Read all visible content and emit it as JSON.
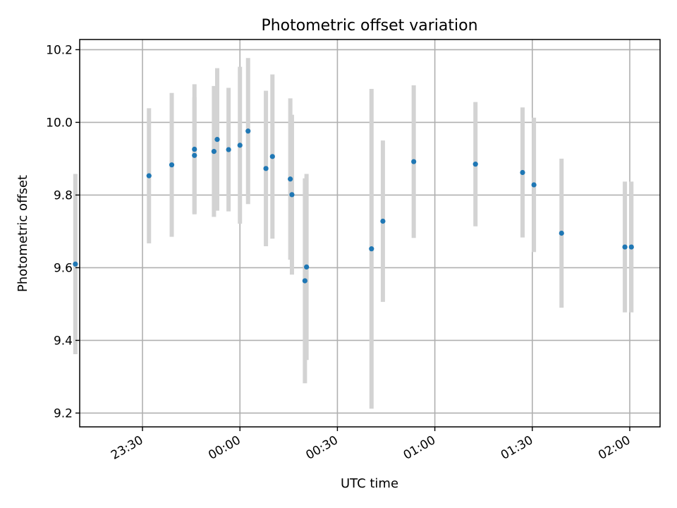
{
  "chart_data": {
    "type": "scatter",
    "title": "Photometric offset variation",
    "xlabel": "UTC time",
    "ylabel": "Photometric offset",
    "x_unit": "time (HH:MM)",
    "xlim": [
      "23:10:40",
      "02:09:20"
    ],
    "ylim": [
      9.162,
      10.228
    ],
    "x_ticks": [
      "23:30",
      "00:00",
      "00:30",
      "01:00",
      "01:30",
      "02:00"
    ],
    "y_ticks": [
      "9.2",
      "9.4",
      "9.6",
      "9.8",
      "10.0",
      "10.2"
    ],
    "x_tick_values": [
      "23:30:00",
      "00:00:00",
      "00:30:00",
      "01:00:00",
      "01:30:00",
      "02:00:00"
    ],
    "y_tick_values": [
      9.2,
      9.4,
      9.6,
      9.8,
      10.0,
      10.2
    ],
    "grid": true,
    "legend": "none",
    "point_color": "#1f77b4",
    "errorbar_color": "#d3d3d3",
    "points": [
      {
        "x": "23:09:20",
        "y": 9.61,
        "err": 0.248
      },
      {
        "x": "23:32:00",
        "y": 9.853,
        "err": 0.186
      },
      {
        "x": "23:39:00",
        "y": 9.883,
        "err": 0.198
      },
      {
        "x": "23:46:00",
        "y": 9.926,
        "err": 0.179
      },
      {
        "x": "23:46:00",
        "y": 9.909,
        "err": 0.16
      },
      {
        "x": "23:52:00",
        "y": 9.92,
        "err": 0.18
      },
      {
        "x": "23:53:00",
        "y": 9.953,
        "err": 0.196
      },
      {
        "x": "23:56:30",
        "y": 9.925,
        "err": 0.17
      },
      {
        "x": "00:00:00",
        "y": 9.937,
        "err": 0.216
      },
      {
        "x": "00:02:30",
        "y": 9.976,
        "err": 0.201
      },
      {
        "x": "00:08:00",
        "y": 9.873,
        "err": 0.214
      },
      {
        "x": "00:10:00",
        "y": 9.906,
        "err": 0.226
      },
      {
        "x": "00:15:30",
        "y": 9.844,
        "err": 0.222
      },
      {
        "x": "00:16:00",
        "y": 9.801,
        "err": 0.22
      },
      {
        "x": "00:20:00",
        "y": 9.564,
        "err": 0.282
      },
      {
        "x": "00:20:30",
        "y": 9.602,
        "err": 0.256
      },
      {
        "x": "00:40:30",
        "y": 9.652,
        "err": 0.44
      },
      {
        "x": "00:44:00",
        "y": 9.728,
        "err": 0.222
      },
      {
        "x": "00:53:30",
        "y": 9.892,
        "err": 0.21
      },
      {
        "x": "01:12:30",
        "y": 9.885,
        "err": 0.171
      },
      {
        "x": "01:27:00",
        "y": 9.862,
        "err": 0.179
      },
      {
        "x": "01:30:30",
        "y": 9.828,
        "err": 0.185
      },
      {
        "x": "01:39:00",
        "y": 9.695,
        "err": 0.205
      },
      {
        "x": "01:58:30",
        "y": 9.657,
        "err": 0.18
      },
      {
        "x": "02:00:30",
        "y": 9.657,
        "err": 0.18
      }
    ]
  }
}
